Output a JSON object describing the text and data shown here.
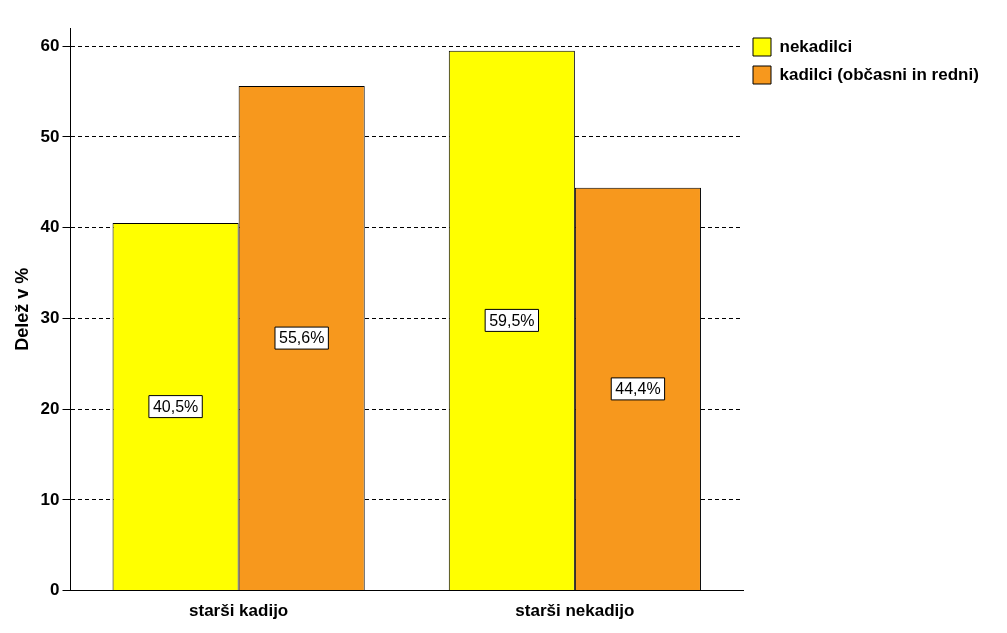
{
  "chart_data": {
    "type": "bar",
    "ylabel": "Delež v %",
    "categories": [
      "starši kadijo",
      "starši nekadijo"
    ],
    "series": [
      {
        "name": "nekadilci",
        "color": "#ffff00",
        "values": [
          40.5,
          59.5
        ],
        "value_labels": [
          "40,5%",
          "59,5%"
        ]
      },
      {
        "name": "kadilci (občasni in redni)",
        "color": "#f7981d",
        "values": [
          55.6,
          44.4
        ],
        "value_labels": [
          "55,6%",
          "44,4%"
        ]
      }
    ],
    "ylim": [
      0,
      62
    ],
    "yticks": [
      0,
      10,
      20,
      30,
      40,
      50,
      60
    ],
    "grid": "y",
    "legend": "top right"
  }
}
